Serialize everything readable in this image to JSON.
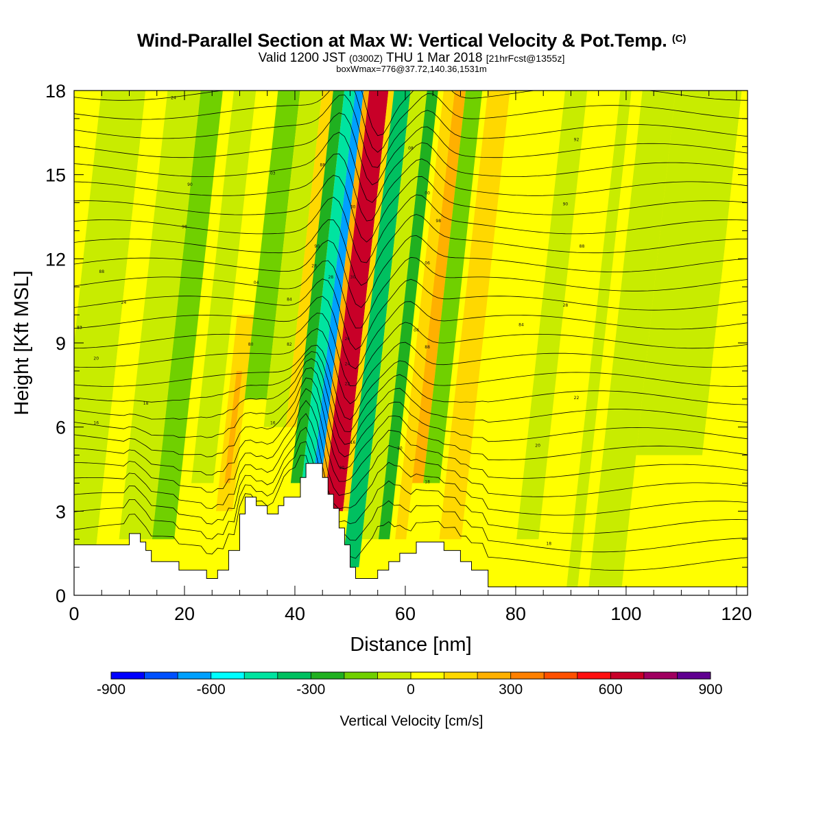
{
  "header": {
    "title_main": "Wind-Parallel Section at Max W: Vertical Velocity & Pot.Temp.",
    "title_copyright": "(C)",
    "subtitle_a": "Valid 1200 JST",
    "subtitle_b": "(0300Z)",
    "subtitle_c": "THU 1 Mar 2018",
    "subtitle_d": "[21hrFcst@1355z]",
    "info_line": "boxWmax=776@37.72,140.36,1531m"
  },
  "chart_data": {
    "type": "heatmap",
    "xlabel": "Distance [nm]",
    "ylabel": "Height [Kft MSL]",
    "xlim": [
      0,
      122
    ],
    "ylim": [
      0,
      18
    ],
    "x_ticks": [
      0,
      20,
      40,
      60,
      80,
      100,
      120
    ],
    "y_ticks": [
      0,
      3,
      6,
      9,
      12,
      15,
      18
    ],
    "colorbar": {
      "title": "Vertical Velocity [cm/s]",
      "boundaries": [
        -900,
        -800,
        -700,
        -600,
        -500,
        -400,
        -300,
        -200,
        -100,
        0,
        100,
        200,
        300,
        400,
        500,
        600,
        700,
        800,
        900
      ],
      "tick_labels": [
        -900,
        -600,
        -300,
        0,
        300,
        600,
        900
      ],
      "colors": [
        "#0000ff",
        "#0050ff",
        "#00a0ff",
        "#00ffff",
        "#00e4a0",
        "#00c060",
        "#20b020",
        "#70d000",
        "#c8ec00",
        "#ffff00",
        "#ffd800",
        "#ffb000",
        "#ff8000",
        "#ff5000",
        "#ff1010",
        "#c80028",
        "#a00060",
        "#600090"
      ]
    },
    "vertical_velocity_cells": [
      {
        "x": [
          0,
          122
        ],
        "y": [
          0,
          18
        ],
        "w": 50
      },
      {
        "x": [
          0,
          8
        ],
        "y": [
          0,
          18
        ],
        "w": -60
      },
      {
        "x": [
          8,
          12
        ],
        "y": [
          0,
          18
        ],
        "w": 50
      },
      {
        "x": [
          12,
          18
        ],
        "y": [
          2,
          18
        ],
        "w": -60
      },
      {
        "x": [
          18,
          22
        ],
        "y": [
          2,
          18
        ],
        "w": -130
      },
      {
        "x": [
          24,
          28
        ],
        "y": [
          4,
          18
        ],
        "w": -60
      },
      {
        "x": [
          29,
          32
        ],
        "y": [
          3,
          10
        ],
        "w": 150
      },
      {
        "x": [
          30,
          31
        ],
        "y": [
          4,
          8
        ],
        "w": 250
      },
      {
        "x": [
          32,
          36
        ],
        "y": [
          7,
          18
        ],
        "w": -130
      },
      {
        "x": [
          36,
          40
        ],
        "y": [
          6,
          18
        ],
        "w": -60
      },
      {
        "x": [
          40,
          42
        ],
        "y": [
          6,
          18
        ],
        "w": 150
      },
      {
        "x": [
          42,
          44
        ],
        "y": [
          4,
          18
        ],
        "w": -220
      },
      {
        "x": [
          44,
          46
        ],
        "y": [
          3,
          18
        ],
        "w": -450
      },
      {
        "x": [
          46,
          47.5
        ],
        "y": [
          3,
          18
        ],
        "w": -620
      },
      {
        "x": [
          47.5,
          48.5
        ],
        "y": [
          3,
          18
        ],
        "w": 250
      },
      {
        "x": [
          48.5,
          52
        ],
        "y": [
          3,
          18
        ],
        "w": 650
      },
      {
        "x": [
          52,
          53
        ],
        "y": [
          3,
          18
        ],
        "w": 150
      },
      {
        "x": [
          53,
          56
        ],
        "y": [
          1,
          18
        ],
        "w": -320
      },
      {
        "x": [
          56,
          59
        ],
        "y": [
          2,
          18
        ],
        "w": -60
      },
      {
        "x": [
          59,
          61
        ],
        "y": [
          2,
          18
        ],
        "w": -220
      },
      {
        "x": [
          62,
          64
        ],
        "y": [
          2,
          18
        ],
        "w": 150
      },
      {
        "x": [
          64,
          66
        ],
        "y": [
          4,
          18
        ],
        "w": 250
      },
      {
        "x": [
          66,
          69
        ],
        "y": [
          4,
          18
        ],
        "w": -130
      },
      {
        "x": [
          70,
          74
        ],
        "y": [
          2,
          18
        ],
        "w": 150
      },
      {
        "x": [
          84,
          88
        ],
        "y": [
          2,
          18
        ],
        "w": -60
      },
      {
        "x": [
          94,
          96
        ],
        "y": [
          0,
          18
        ],
        "w": -60
      },
      {
        "x": [
          98,
          104
        ],
        "y": [
          0,
          18
        ],
        "w": -60
      },
      {
        "x": [
          104,
          116
        ],
        "y": [
          5,
          18
        ],
        "w": -60
      },
      {
        "x": [
          116,
          122
        ],
        "y": [
          0,
          18
        ],
        "w": 50
      }
    ],
    "terrain": [
      [
        0,
        1.8
      ],
      [
        10,
        1.8
      ],
      [
        10,
        2.2
      ],
      [
        12,
        2.2
      ],
      [
        12,
        1.9
      ],
      [
        13,
        1.9
      ],
      [
        13,
        1.6
      ],
      [
        14,
        1.6
      ],
      [
        14,
        1.2
      ],
      [
        19,
        1.2
      ],
      [
        19,
        0.9
      ],
      [
        24,
        0.9
      ],
      [
        24,
        0.6
      ],
      [
        26,
        0.6
      ],
      [
        26,
        0.9
      ],
      [
        28,
        0.9
      ],
      [
        28,
        1.6
      ],
      [
        30,
        1.6
      ],
      [
        30,
        2.9
      ],
      [
        31,
        2.9
      ],
      [
        31,
        3.5
      ],
      [
        33,
        3.5
      ],
      [
        33,
        3.2
      ],
      [
        35,
        3.2
      ],
      [
        35,
        2.9
      ],
      [
        37,
        2.9
      ],
      [
        37,
        3.2
      ],
      [
        38,
        3.2
      ],
      [
        38,
        3.5
      ],
      [
        41,
        3.5
      ],
      [
        41,
        4.2
      ],
      [
        42,
        4.2
      ],
      [
        42,
        4.7
      ],
      [
        45,
        4.7
      ],
      [
        45,
        4.2
      ],
      [
        46,
        4.2
      ],
      [
        46,
        3.6
      ],
      [
        47,
        3.6
      ],
      [
        47,
        3.1
      ],
      [
        48,
        3.1
      ],
      [
        48,
        2.4
      ],
      [
        49,
        2.4
      ],
      [
        49,
        1.8
      ],
      [
        50,
        1.8
      ],
      [
        50,
        1.0
      ],
      [
        51,
        1.0
      ],
      [
        51,
        0.6
      ],
      [
        55,
        0.6
      ],
      [
        55,
        0.9
      ],
      [
        57,
        0.9
      ],
      [
        57,
        1.2
      ],
      [
        59,
        1.2
      ],
      [
        59,
        1.5
      ],
      [
        62,
        1.5
      ],
      [
        62,
        1.9
      ],
      [
        67,
        1.9
      ],
      [
        67,
        1.6
      ],
      [
        70,
        1.6
      ],
      [
        70,
        1.2
      ],
      [
        72,
        1.2
      ],
      [
        72,
        0.9
      ],
      [
        75,
        0.9
      ],
      [
        75,
        0.3
      ],
      [
        122,
        0.3
      ]
    ],
    "theta_contour_labels": [
      {
        "x": 18,
        "y": 17.7,
        "text": "24"
      },
      {
        "x": 21,
        "y": 14.6,
        "text": "90"
      },
      {
        "x": 20,
        "y": 13.1,
        "text": "98"
      },
      {
        "x": 5,
        "y": 11.5,
        "text": "88"
      },
      {
        "x": 9,
        "y": 10.4,
        "text": "24"
      },
      {
        "x": 1,
        "y": 9.5,
        "text": "83"
      },
      {
        "x": 4,
        "y": 8.4,
        "text": "20"
      },
      {
        "x": 13,
        "y": 6.8,
        "text": "18"
      },
      {
        "x": 4,
        "y": 6.1,
        "text": "16"
      },
      {
        "x": 32,
        "y": 8.9,
        "text": "80"
      },
      {
        "x": 36,
        "y": 15.0,
        "text": "03"
      },
      {
        "x": 33,
        "y": 11.1,
        "text": "04"
      },
      {
        "x": 39,
        "y": 10.5,
        "text": "84"
      },
      {
        "x": 39,
        "y": 8.9,
        "text": "82"
      },
      {
        "x": 36,
        "y": 6.1,
        "text": "16"
      },
      {
        "x": 45,
        "y": 15.3,
        "text": "88"
      },
      {
        "x": 44,
        "y": 12.4,
        "text": "90"
      },
      {
        "x": 43.5,
        "y": 11.7,
        "text": "28"
      },
      {
        "x": 46.5,
        "y": 11.3,
        "text": "28"
      },
      {
        "x": 50.5,
        "y": 13.8,
        "text": "30"
      },
      {
        "x": 50.5,
        "y": 11.3,
        "text": "30"
      },
      {
        "x": 49.5,
        "y": 9.1,
        "text": "26"
      },
      {
        "x": 49.5,
        "y": 8.2,
        "text": "24"
      },
      {
        "x": 49.5,
        "y": 7.5,
        "text": "22"
      },
      {
        "x": 50.5,
        "y": 5.4,
        "text": "16"
      },
      {
        "x": 48.5,
        "y": 4.5,
        "text": "20"
      },
      {
        "x": 61,
        "y": 15.9,
        "text": "08"
      },
      {
        "x": 64,
        "y": 14.3,
        "text": "00"
      },
      {
        "x": 66,
        "y": 13.3,
        "text": "98"
      },
      {
        "x": 64,
        "y": 11.8,
        "text": "06"
      },
      {
        "x": 62,
        "y": 9.4,
        "text": "04"
      },
      {
        "x": 64,
        "y": 8.8,
        "text": "88"
      },
      {
        "x": 59,
        "y": 5.2,
        "text": "20"
      },
      {
        "x": 64,
        "y": 4.0,
        "text": "18"
      },
      {
        "x": 91,
        "y": 16.2,
        "text": "92"
      },
      {
        "x": 89,
        "y": 13.9,
        "text": "90"
      },
      {
        "x": 92,
        "y": 12.4,
        "text": "88"
      },
      {
        "x": 89,
        "y": 10.3,
        "text": "28"
      },
      {
        "x": 81,
        "y": 9.6,
        "text": "84"
      },
      {
        "x": 91,
        "y": 7.0,
        "text": "22"
      },
      {
        "x": 84,
        "y": 5.3,
        "text": "20"
      },
      {
        "x": 86,
        "y": 1.8,
        "text": "18"
      }
    ]
  }
}
